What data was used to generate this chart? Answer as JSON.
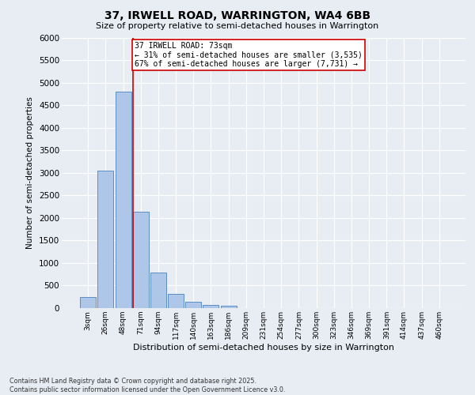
{
  "title": "37, IRWELL ROAD, WARRINGTON, WA4 6BB",
  "subtitle": "Size of property relative to semi-detached houses in Warrington",
  "xlabel": "Distribution of semi-detached houses by size in Warrington",
  "ylabel": "Number of semi-detached properties",
  "bar_values": [
    250,
    3050,
    4800,
    2130,
    780,
    310,
    140,
    70,
    50,
    0,
    0,
    0,
    0,
    0,
    0,
    0,
    0,
    0,
    0,
    0,
    0
  ],
  "categories": [
    "3sqm",
    "26sqm",
    "48sqm",
    "71sqm",
    "94sqm",
    "117sqm",
    "140sqm",
    "163sqm",
    "186sqm",
    "209sqm",
    "231sqm",
    "254sqm",
    "277sqm",
    "300sqm",
    "323sqm",
    "346sqm",
    "369sqm",
    "391sqm",
    "414sqm",
    "437sqm",
    "460sqm"
  ],
  "bar_color": "#aec6e8",
  "bar_edge_color": "#5b8ec4",
  "ylim": [
    0,
    6000
  ],
  "yticks": [
    0,
    500,
    1000,
    1500,
    2000,
    2500,
    3000,
    3500,
    4000,
    4500,
    5000,
    5500,
    6000
  ],
  "vline_color": "#cc0000",
  "annotation_text": "37 IRWELL ROAD: 73sqm\n← 31% of semi-detached houses are smaller (3,535)\n67% of semi-detached houses are larger (7,731) →",
  "annotation_box_color": "#ffffff",
  "annotation_box_edge": "#cc0000",
  "bg_color": "#e8edf4",
  "plot_bg_color": "#e8edf4",
  "footer": "Contains HM Land Registry data © Crown copyright and database right 2025.\nContains public sector information licensed under the Open Government Licence v3.0.",
  "figsize": [
    6.0,
    5.0
  ],
  "dpi": 100
}
